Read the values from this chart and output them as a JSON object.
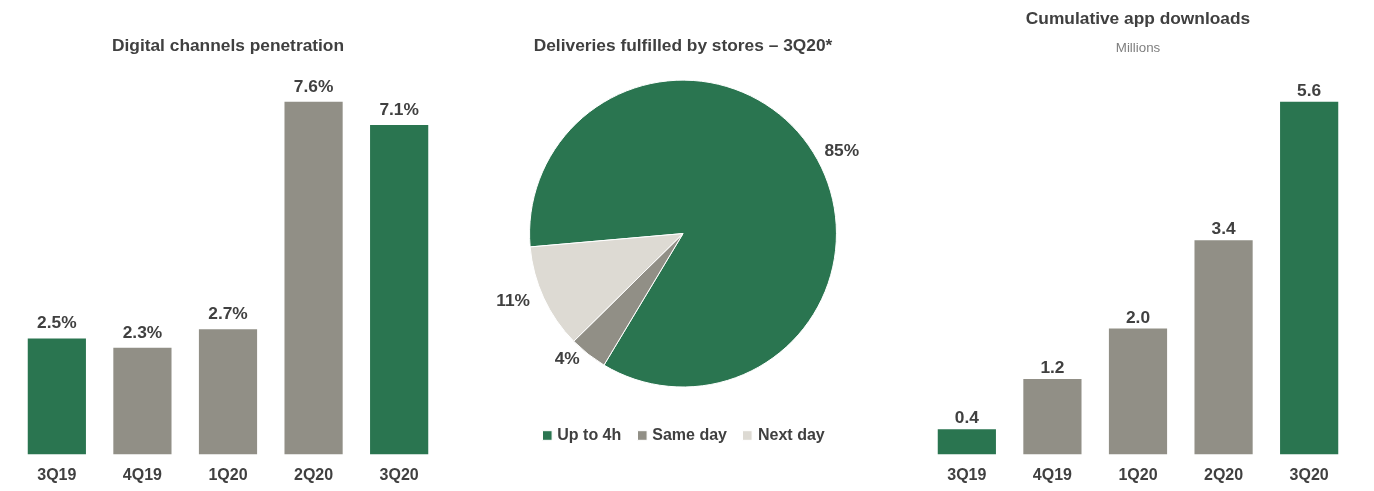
{
  "chart_data": [
    {
      "type": "bar",
      "title": "Digital channels penetration",
      "categories": [
        "3Q19",
        "4Q19",
        "1Q20",
        "2Q20",
        "3Q20"
      ],
      "values": [
        2.5,
        2.3,
        2.7,
        7.6,
        7.1
      ],
      "value_labels": [
        "2.5%",
        "2.3%",
        "2.7%",
        "7.6%",
        "7.1%"
      ],
      "colors": [
        "#2a7550",
        "#918f86",
        "#918f86",
        "#918f86",
        "#2a7550"
      ],
      "tick_labels": "x",
      "grid": false
    },
    {
      "type": "pie",
      "title": "Deliveries fulfilled by stores – 3Q20*",
      "categories": [
        "Up to 4h",
        "Same day",
        "Next day"
      ],
      "values": [
        85,
        4,
        11
      ],
      "value_labels": [
        "85%",
        "4%",
        "11%"
      ],
      "colors": [
        "#2a7550",
        "#918f86",
        "#dddad3"
      ],
      "legend": "bottom"
    },
    {
      "type": "bar",
      "title": "Cumulative app downloads",
      "subtitle": "Millions",
      "categories": [
        "3Q19",
        "4Q19",
        "1Q20",
        "2Q20",
        "3Q20"
      ],
      "values": [
        0.4,
        1.2,
        2.0,
        3.4,
        5.6
      ],
      "value_labels": [
        "0.4",
        "1.2",
        "2.0",
        "3.4",
        "5.6"
      ],
      "colors": [
        "#2a7550",
        "#918f86",
        "#918f86",
        "#918f86",
        "#2a7550"
      ],
      "tick_labels": "x",
      "grid": false
    }
  ]
}
